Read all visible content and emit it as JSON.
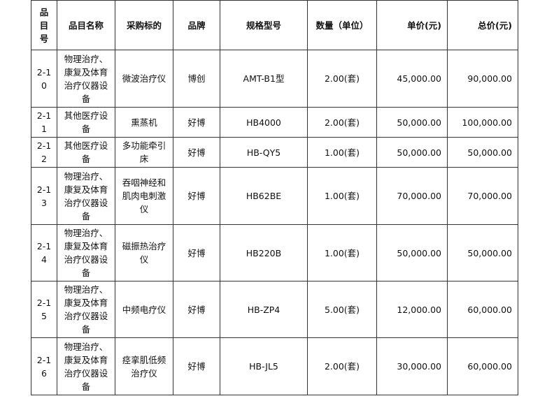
{
  "headers": [
    "品目号",
    "品目名称",
    "采购标的",
    "品牌",
    "规格型号",
    "数量（单位）",
    "单价(元)",
    "总价(元)"
  ],
  "rows": [
    {
      "no": "2-10",
      "category": "物理治疗、康复及体育治疗仪器设备",
      "item": "微波治疗仪",
      "brand": "博创",
      "model": "AMT-B1型",
      "qty": "2.00(套)",
      "unit_price": "45,000.00",
      "total": "90,000.00"
    },
    {
      "no": "2-11",
      "category": "其他医疗设备",
      "item": "熏蒸机",
      "brand": "好博",
      "model": "HB4000",
      "qty": "2.00(套)",
      "unit_price": "50,000.00",
      "total": "100,000.00"
    },
    {
      "no": "2-12",
      "category": "其他医疗设备",
      "item": "多功能牵引床",
      "brand": "好博",
      "model": "HB-QY5",
      "qty": "1.00(套)",
      "unit_price": "50,000.00",
      "total": "50,000.00"
    },
    {
      "no": "2-13",
      "category": "物理治疗、康复及体育治疗仪器设备",
      "item": "吞咽神经和肌肉电刺激仪",
      "brand": "好博",
      "model": "HB62BE",
      "qty": "1.00(套)",
      "unit_price": "70,000.00",
      "total": "70,000.00"
    },
    {
      "no": "2-14",
      "category": "物理治疗、康复及体育治疗仪器设备",
      "item": "磁振热治疗仪",
      "brand": "好博",
      "model": "HB220B",
      "qty": "1.00(套)",
      "unit_price": "50,000.00",
      "total": "50,000.00"
    },
    {
      "no": "2-15",
      "category": "物理治疗、康复及体育治疗仪器设备",
      "item": "中频电疗仪",
      "brand": "好博",
      "model": "HB-ZP4",
      "qty": "5.00(套)",
      "unit_price": "12,000.00",
      "total": "60,000.00"
    },
    {
      "no": "2-16",
      "category": "物理治疗、康复及体育治疗仪器设备",
      "item": "痉挛肌低频治疗仪",
      "brand": "好博",
      "model": "HB-JL5",
      "qty": "2.00(套)",
      "unit_price": "30,000.00",
      "total": "60,000.00"
    }
  ]
}
